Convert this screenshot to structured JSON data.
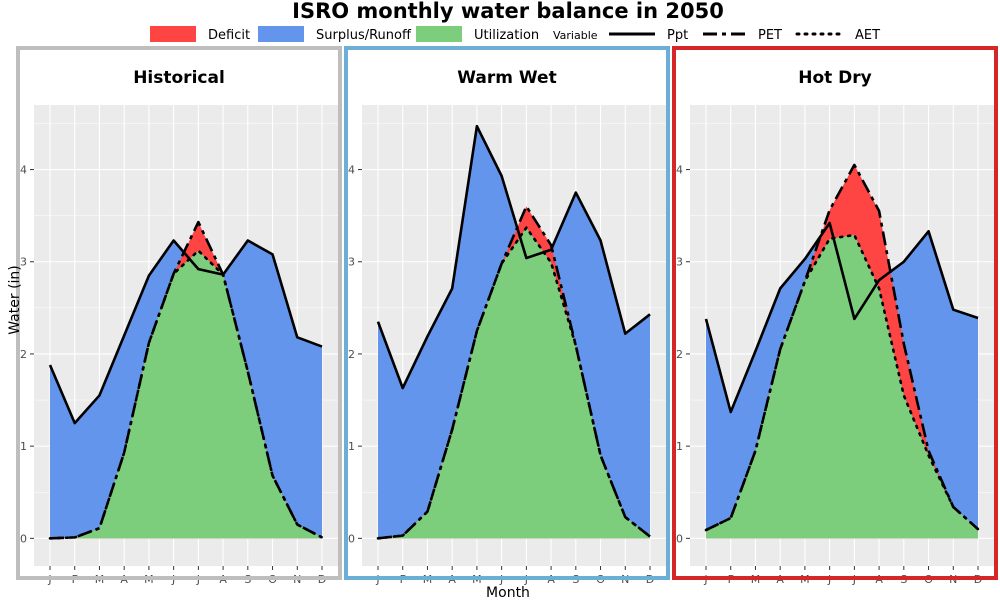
{
  "chart_data": {
    "type": "area",
    "title": "ISRO monthly water balance in 2050",
    "xlabel": "Month",
    "ylabel": "Water (in)",
    "ylim": [
      -0.3,
      4.7
    ],
    "yticks": [
      0,
      1,
      2,
      3,
      4
    ],
    "categories": [
      "J",
      "F",
      "M",
      "A",
      "M",
      "J",
      "J",
      "A",
      "S",
      "O",
      "N",
      "D"
    ],
    "grid": true,
    "legend": {
      "position": "top",
      "fill_title": "",
      "fill_items": [
        {
          "name": "Deficit",
          "color": "#ff4444"
        },
        {
          "name": "Surplus/Runoff",
          "color": "#6495ed"
        },
        {
          "name": "Utilization",
          "color": "#7ccd7c"
        }
      ],
      "line_title": "Variable",
      "line_items": [
        {
          "name": "Ppt",
          "dash": "solid"
        },
        {
          "name": "PET",
          "dash": "longdash"
        },
        {
          "name": "AET",
          "dash": "dotted"
        }
      ]
    },
    "panels": [
      {
        "title": "Historical",
        "border_color": "#bebebe",
        "series": [
          {
            "name": "Ppt",
            "values": [
              1.88,
              1.25,
              1.55,
              2.2,
              2.85,
              3.23,
              2.92,
              2.86,
              3.23,
              3.08,
              2.18,
              2.08
            ]
          },
          {
            "name": "PET",
            "values": [
              0.0,
              0.01,
              0.11,
              0.93,
              2.12,
              2.87,
              3.43,
              2.86,
              1.81,
              0.68,
              0.15,
              0.01
            ]
          },
          {
            "name": "AET",
            "values": [
              0.0,
              0.01,
              0.11,
              0.93,
              2.12,
              2.87,
              3.12,
              2.86,
              1.81,
              0.68,
              0.15,
              0.01
            ]
          }
        ]
      },
      {
        "title": "Warm Wet",
        "border_color": "#6baed6",
        "series": [
          {
            "name": "Ppt",
            "values": [
              2.35,
              1.63,
              2.19,
              2.71,
              4.47,
              3.93,
              3.04,
              3.13,
              3.75,
              3.23,
              2.22,
              2.43
            ]
          },
          {
            "name": "PET",
            "values": [
              0.0,
              0.03,
              0.29,
              1.18,
              2.25,
              2.98,
              3.6,
              3.18,
              2.09,
              0.9,
              0.23,
              0.02
            ]
          },
          {
            "name": "AET",
            "values": [
              0.0,
              0.03,
              0.29,
              1.18,
              2.25,
              2.98,
              3.37,
              2.99,
              2.09,
              0.9,
              0.23,
              0.02
            ]
          }
        ]
      },
      {
        "title": "Hot Dry",
        "border_color": "#d62728",
        "series": [
          {
            "name": "Ppt",
            "values": [
              2.38,
              1.37,
              2.03,
              2.71,
              3.03,
              3.42,
              2.38,
              2.8,
              3.0,
              3.33,
              2.48,
              2.39
            ]
          },
          {
            "name": "PET",
            "values": [
              0.09,
              0.22,
              0.95,
              2.05,
              2.79,
              3.56,
              4.05,
              3.55,
              2.11,
              0.95,
              0.34,
              0.1
            ]
          },
          {
            "name": "AET",
            "values": [
              0.09,
              0.22,
              0.95,
              2.05,
              2.79,
              3.25,
              3.29,
              2.71,
              1.55,
              0.9,
              0.34,
              0.1
            ]
          }
        ]
      }
    ]
  }
}
